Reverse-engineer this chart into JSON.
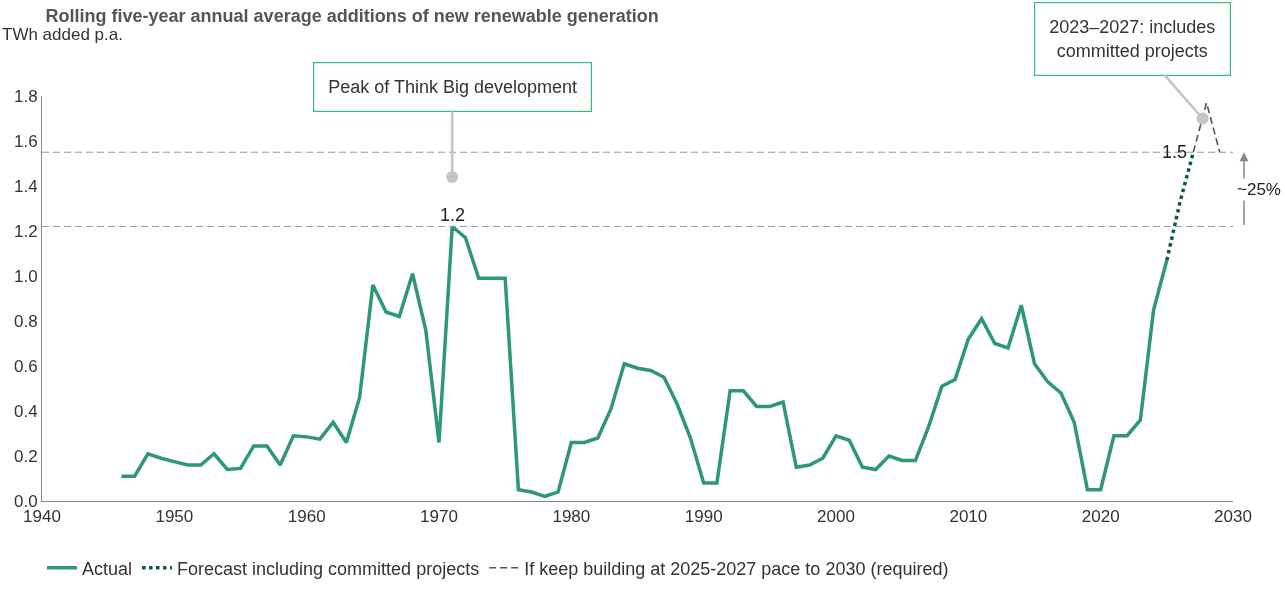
{
  "chart_data": {
    "type": "line",
    "title": "Rolling five-year annual average additions of new renewable generation",
    "subtitle": "TWh added p.a.",
    "xlim": [
      1940,
      2030
    ],
    "xticks": [
      1940,
      1950,
      1960,
      1970,
      1980,
      1990,
      2000,
      2010,
      2020,
      2030
    ],
    "ylim": [
      0,
      1.8
    ],
    "yticks": [
      {
        "value": 0,
        "label": "0.0"
      },
      0.2,
      0.4,
      0.6,
      0.8,
      {
        "value": 1,
        "label": "1.0"
      },
      1.2,
      1.4,
      1.6,
      1.8
    ],
    "grid": false,
    "legend": "bottom",
    "marker": "none",
    "series": [
      {
        "name": "Actual",
        "color": "#2e9775",
        "line_style": "solid",
        "x": [
          1946,
          1947,
          1948,
          1949,
          1950,
          1951,
          1952,
          1953,
          1954,
          1955,
          1956,
          1957,
          1958,
          1959,
          1960,
          1961,
          1962,
          1963,
          1964,
          1965,
          1966,
          1967,
          1968,
          1969,
          1970,
          1971,
          1972,
          1973,
          1974,
          1975,
          1976,
          1977,
          1978,
          1979,
          1980,
          1981,
          1982,
          1983,
          1984,
          1985,
          1986,
          1987,
          1988,
          1989,
          1990,
          1991,
          1992,
          1993,
          1994,
          1995,
          1996,
          1997,
          1998,
          1999,
          2000,
          2001,
          2002,
          2003,
          2004,
          2005,
          2006,
          2007,
          2008,
          2009,
          2010,
          2011,
          2012,
          2013,
          2014,
          2015,
          2016,
          2017,
          2018,
          2019,
          2020,
          2021,
          2022,
          2023,
          2024,
          2025
        ],
        "values": [
          0.11,
          0.11,
          0.21,
          0.19,
          0.175,
          0.16,
          0.16,
          0.21,
          0.14,
          0.145,
          0.245,
          0.245,
          0.16,
          0.29,
          0.285,
          0.275,
          0.35,
          0.26,
          0.46,
          0.96,
          0.84,
          0.82,
          1.01,
          0.76,
          0.26,
          1.22,
          1.17,
          0.99,
          0.99,
          0.99,
          0.05,
          0.04,
          0.02,
          0.04,
          0.26,
          0.26,
          0.28,
          0.41,
          0.61,
          0.59,
          0.58,
          0.55,
          0.43,
          0.28,
          0.08,
          0.08,
          0.49,
          0.49,
          0.42,
          0.42,
          0.44,
          0.15,
          0.16,
          0.19,
          0.29,
          0.27,
          0.15,
          0.14,
          0.2,
          0.18,
          0.18,
          0.33,
          0.51,
          0.54,
          0.72,
          0.81,
          0.7,
          0.68,
          0.87,
          0.61,
          0.53,
          0.48,
          0.35,
          0.05,
          0.05,
          0.29,
          0.29,
          0.36,
          0.85,
          1.07
        ]
      },
      {
        "name": "Forecast including committed projects",
        "color": "#0b5a3a",
        "line_style": "dotted",
        "x": [
          2025,
          2026,
          2027
        ],
        "values": [
          1.07,
          1.33,
          1.55
        ]
      },
      {
        "name": "If keep building at 2025-2027 pace to 2030 (required)",
        "color": "#555555",
        "line_style": "dashed",
        "x": [
          2027,
          2028,
          2029
        ],
        "values": [
          1.55,
          1.77,
          1.55
        ]
      }
    ],
    "ref_lines": [
      {
        "axis": "y",
        "value": 1.22,
        "color": "#999999",
        "line_style": "dashed"
      },
      {
        "axis": "y",
        "value": 1.55,
        "color": "#999999",
        "line_style": "dashed"
      }
    ],
    "annotations": [
      {
        "text": "1.2",
        "x": 1971,
        "y": 1.22
      },
      {
        "text": "1.5",
        "x": 2027,
        "y": 1.55
      },
      "~25%",
      "Peak of Think Big development",
      {
        "text": "2023–2027: includes committed projects",
        "x": 2027.7,
        "y": 1.7
      }
    ]
  }
}
